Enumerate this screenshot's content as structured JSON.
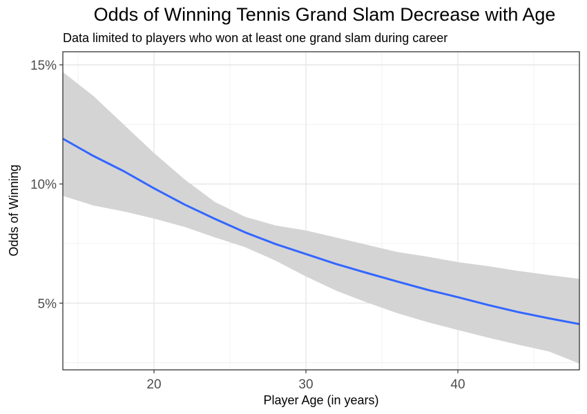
{
  "chart_data": {
    "type": "line",
    "title": "Odds of Winning Tennis Grand Slam Decrease with Age",
    "subtitle": "Data limited to players who won at least one grand slam during career",
    "xlabel": "Player Age (in years)",
    "ylabel": "Odds of Winning",
    "xlim": [
      14.0,
      48.0
    ],
    "ylim": [
      0.022,
      0.1555
    ],
    "x_ticks": [
      20,
      30,
      40
    ],
    "x_tick_labels": [
      "20",
      "30",
      "40"
    ],
    "y_ticks": [
      0.05,
      0.1,
      0.15
    ],
    "y_tick_labels": [
      "5%",
      "10%",
      "15%"
    ],
    "grid": true,
    "series": [
      {
        "kind": "fit_line",
        "color": "#3366FF",
        "x": [
          14.0,
          16,
          18,
          20,
          22,
          24,
          26,
          28,
          30,
          32,
          34,
          36,
          38,
          40,
          42,
          44,
          46,
          48.0
        ],
        "y": [
          0.119,
          0.1118,
          0.1054,
          0.0982,
          0.0914,
          0.0854,
          0.0797,
          0.0748,
          0.0706,
          0.0664,
          0.0627,
          0.0591,
          0.0556,
          0.0525,
          0.0492,
          0.0462,
          0.0436,
          0.0412
        ]
      },
      {
        "kind": "confidence_band",
        "color": "#d4d4d4",
        "x": [
          14.0,
          16,
          18,
          20,
          22,
          24,
          26,
          28,
          30,
          32,
          34,
          36,
          38,
          40,
          42,
          44,
          46,
          48.0
        ],
        "upper": [
          0.147,
          0.137,
          0.125,
          0.113,
          0.102,
          0.0925,
          0.0862,
          0.0826,
          0.0805,
          0.0775,
          0.0745,
          0.0715,
          0.0695,
          0.0672,
          0.0655,
          0.0635,
          0.0618,
          0.0602
        ],
        "lower": [
          0.095,
          0.091,
          0.0885,
          0.0855,
          0.082,
          0.0776,
          0.0735,
          0.0678,
          0.0612,
          0.0552,
          0.0503,
          0.0458,
          0.042,
          0.0387,
          0.0355,
          0.0325,
          0.0297,
          0.0246
        ]
      }
    ]
  }
}
